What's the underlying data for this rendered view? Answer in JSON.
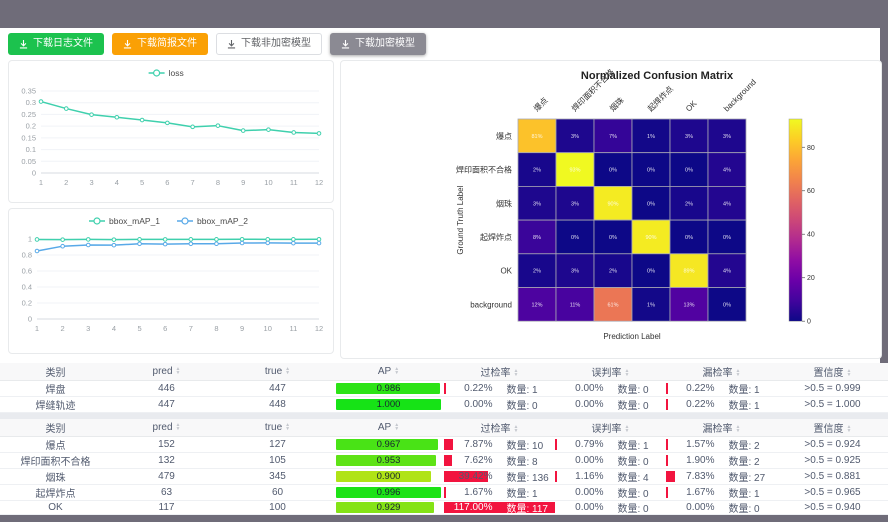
{
  "buttons": [
    {
      "label": "下载日志文件",
      "style": "green"
    },
    {
      "label": "下载简报文件",
      "style": "orange"
    },
    {
      "label": "下载非加密模型",
      "style": "white"
    },
    {
      "label": "下载加密模型",
      "style": "gray"
    }
  ],
  "charts": {
    "loss": {
      "type": "line",
      "x": [
        1,
        2,
        3,
        4,
        5,
        6,
        7,
        8,
        9,
        10,
        11,
        12
      ],
      "series": [
        {
          "name": "loss",
          "color": "#3fd0ad",
          "values": [
            0.305,
            0.275,
            0.249,
            0.238,
            0.226,
            0.214,
            0.197,
            0.202,
            0.181,
            0.185,
            0.173,
            0.169
          ]
        }
      ],
      "yticks": [
        0,
        0.05,
        0.1,
        0.15,
        0.2,
        0.25,
        0.3,
        0.35
      ],
      "ylim": [
        0,
        0.35
      ],
      "legend_position": "top"
    },
    "bbox_map": {
      "type": "line",
      "x": [
        1,
        2,
        3,
        4,
        5,
        6,
        7,
        8,
        9,
        10,
        11,
        12
      ],
      "series": [
        {
          "name": "bbox_mAP_1",
          "color": "#3fd0ad",
          "values": [
            0.994,
            0.992,
            0.995,
            0.992,
            0.996,
            0.995,
            0.996,
            0.996,
            0.997,
            0.996,
            0.996,
            0.997
          ]
        },
        {
          "name": "bbox_mAP_2",
          "color": "#58a9e8",
          "values": [
            0.85,
            0.91,
            0.925,
            0.923,
            0.94,
            0.936,
            0.94,
            0.941,
            0.95,
            0.951,
            0.948,
            0.949
          ]
        }
      ],
      "yticks": [
        0,
        0.2,
        0.4,
        0.6,
        0.8,
        1
      ],
      "ylim": [
        0,
        1
      ],
      "legend_position": "top"
    },
    "confusion_matrix": {
      "type": "heatmap",
      "title": "Normalized Confusion Matrix",
      "xlabel": "Prediction Label",
      "ylabel": "Ground Truth Label",
      "labels": [
        "爆点",
        "焊印面积不合格",
        "烟珠",
        "起焊炸点",
        "OK",
        "background"
      ],
      "values_percent": [
        [
          81,
          3,
          7,
          1,
          3,
          3
        ],
        [
          2,
          93,
          0,
          0,
          0,
          4
        ],
        [
          3,
          3,
          90,
          0,
          2,
          4
        ],
        [
          8,
          0,
          0,
          90,
          0,
          0
        ],
        [
          2,
          3,
          2,
          0,
          89,
          4
        ],
        [
          12,
          11,
          61,
          1,
          13,
          0
        ]
      ],
      "vmax": 93,
      "colorbar_ticks": [
        0,
        20,
        40,
        60,
        80
      ],
      "colormap": "plasma"
    }
  },
  "tables": [
    {
      "headers": [
        {
          "label": "类别",
          "sortable": false
        },
        {
          "label": "pred",
          "sortable": true
        },
        {
          "label": "true",
          "sortable": true
        },
        {
          "label": "AP",
          "sortable": true
        },
        {
          "label": "过检率",
          "sortable": true
        },
        {
          "label": "误判率",
          "sortable": true
        },
        {
          "label": "漏检率",
          "sortable": true
        },
        {
          "label": "置信度",
          "sortable": true
        }
      ],
      "rows": [
        {
          "cls": "焊盘",
          "pred": "446",
          "true": "447",
          "ap": 0.986,
          "ap_text": "0.986",
          "over": {
            "pct": 0.22,
            "text": "0.22%",
            "count": "数量: 1"
          },
          "mis": {
            "pct": 0.0,
            "text": "0.00%",
            "count": "数量: 0"
          },
          "miss": {
            "pct": 0.22,
            "text": "0.22%",
            "count": "数量: 1"
          },
          "conf": ">0.5 = 0.999"
        },
        {
          "cls": "焊缝轨迹",
          "pred": "447",
          "true": "448",
          "ap": 1.0,
          "ap_text": "1.000",
          "over": {
            "pct": 0.0,
            "text": "0.00%",
            "count": "数量: 0"
          },
          "mis": {
            "pct": 0.0,
            "text": "0.00%",
            "count": "数量: 0"
          },
          "miss": {
            "pct": 0.22,
            "text": "0.22%",
            "count": "数量: 1"
          },
          "conf": ">0.5 = 1.000"
        }
      ]
    },
    {
      "headers": [
        {
          "label": "类别",
          "sortable": false
        },
        {
          "label": "pred",
          "sortable": true
        },
        {
          "label": "true",
          "sortable": true
        },
        {
          "label": "AP",
          "sortable": true
        },
        {
          "label": "过检率",
          "sortable": true
        },
        {
          "label": "误判率",
          "sortable": true
        },
        {
          "label": "漏检率",
          "sortable": true
        },
        {
          "label": "置信度",
          "sortable": true
        }
      ],
      "rows": [
        {
          "cls": "爆点",
          "pred": "152",
          "true": "127",
          "ap": 0.967,
          "ap_text": "0.967",
          "over": {
            "pct": 7.87,
            "text": "7.87%",
            "count": "数量: 10"
          },
          "mis": {
            "pct": 0.79,
            "text": "0.79%",
            "count": "数量: 1"
          },
          "miss": {
            "pct": 1.57,
            "text": "1.57%",
            "count": "数量: 2"
          },
          "conf": ">0.5 = 0.924"
        },
        {
          "cls": "焊印面积不合格",
          "pred": "132",
          "true": "105",
          "ap": 0.953,
          "ap_text": "0.953",
          "over": {
            "pct": 7.62,
            "text": "7.62%",
            "count": "数量: 8"
          },
          "mis": {
            "pct": 0.0,
            "text": "0.00%",
            "count": "数量: 0"
          },
          "miss": {
            "pct": 1.9,
            "text": "1.90%",
            "count": "数量: 2"
          },
          "conf": ">0.5 = 0.925"
        },
        {
          "cls": "烟珠",
          "pred": "479",
          "true": "345",
          "ap": 0.9,
          "ap_text": "0.900",
          "over": {
            "pct": 39.42,
            "text": "39.42%",
            "count": "数量: 136"
          },
          "mis": {
            "pct": 1.16,
            "text": "1.16%",
            "count": "数量: 4"
          },
          "miss": {
            "pct": 7.83,
            "text": "7.83%",
            "count": "数量: 27"
          },
          "conf": ">0.5 = 0.881"
        },
        {
          "cls": "起焊炸点",
          "pred": "63",
          "true": "60",
          "ap": 0.996,
          "ap_text": "0.996",
          "over": {
            "pct": 1.67,
            "text": "1.67%",
            "count": "数量: 1"
          },
          "mis": {
            "pct": 0.0,
            "text": "0.00%",
            "count": "数量: 0"
          },
          "miss": {
            "pct": 1.67,
            "text": "1.67%",
            "count": "数量: 1"
          },
          "conf": ">0.5 = 0.965"
        },
        {
          "cls": "OK",
          "pred": "117",
          "true": "100",
          "ap": 0.929,
          "ap_text": "0.929",
          "over": {
            "pct": 117.0,
            "text": "117.00%",
            "count": "数量: 117"
          },
          "mis": {
            "pct": 0.0,
            "text": "0.00%",
            "count": "数量: 0"
          },
          "miss": {
            "pct": 0.0,
            "text": "0.00%",
            "count": "数量: 0"
          },
          "conf": ">0.5 = 0.940"
        }
      ]
    }
  ],
  "colors": {
    "accent_teal": "#3fd0ad",
    "accent_blue": "#58a9e8",
    "bar_red": "#f2143f",
    "frame_gray": "#6f6c79"
  }
}
